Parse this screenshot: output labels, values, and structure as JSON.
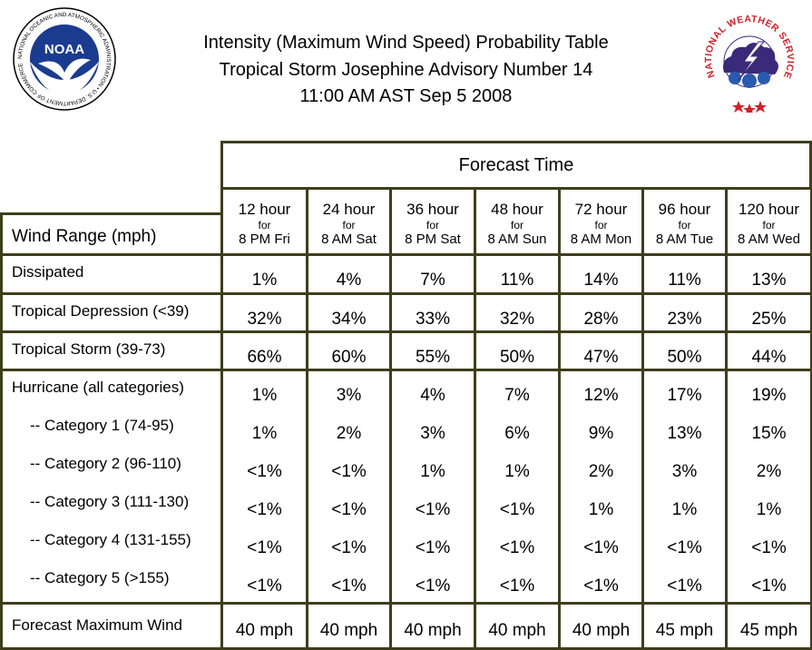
{
  "header": {
    "title_line1": "Intensity (Maximum Wind Speed) Probability Table",
    "title_line2": "Tropical Storm Josephine Advisory Number 14",
    "title_line3": "11:00 AM AST Sep 5 2008",
    "noaa_logo_text": "NOAA",
    "noaa_ring_text": "NATIONAL OCEANIC AND ATMOSPHERIC ADMINISTRATION • U.S. DEPARTMENT OF COMMERCE",
    "nws_ring_text": "NATIONAL WEATHER SERVICE"
  },
  "colors": {
    "border": "#3e3e1c",
    "noaa_blue": "#1a3b8f",
    "nws_red": "#d0202a",
    "nws_cloud": "#3a2a7a"
  },
  "table": {
    "forecast_time_label": "Forecast Time",
    "wind_range_label": "Wind Range (mph)",
    "columns": [
      {
        "hours": "12 hour",
        "for": "for",
        "when": "8 PM Fri"
      },
      {
        "hours": "24 hour",
        "for": "for",
        "when": "8 AM Sat"
      },
      {
        "hours": "36 hour",
        "for": "for",
        "when": "8 PM Sat"
      },
      {
        "hours": "48 hour",
        "for": "for",
        "when": "8 AM Sun"
      },
      {
        "hours": "72 hour",
        "for": "for",
        "when": "8 AM Mon"
      },
      {
        "hours": "96 hour",
        "for": "for",
        "when": "8 AM Tue"
      },
      {
        "hours": "120 hour",
        "for": "for",
        "when": "8 AM Wed"
      }
    ],
    "rows": [
      {
        "label": "Dissipated",
        "values": [
          "1%",
          "4%",
          "7%",
          "11%",
          "14%",
          "11%",
          "13%"
        ]
      },
      {
        "label": "Tropical Depression (<39)",
        "values": [
          "32%",
          "34%",
          "33%",
          "32%",
          "28%",
          "23%",
          "25%"
        ]
      },
      {
        "label": "Tropical Storm (39-73)",
        "values": [
          "66%",
          "60%",
          "55%",
          "50%",
          "47%",
          "50%",
          "44%"
        ]
      },
      {
        "label": "Hurricane (all categories)",
        "values": [
          "1%",
          "3%",
          "4%",
          "7%",
          "12%",
          "17%",
          "19%"
        ]
      },
      {
        "label": "-- Category 1 (74-95)",
        "values": [
          "1%",
          "2%",
          "3%",
          "6%",
          "9%",
          "13%",
          "15%"
        ]
      },
      {
        "label": "-- Category 2 (96-110)",
        "values": [
          "<1%",
          "<1%",
          "1%",
          "1%",
          "2%",
          "3%",
          "2%"
        ]
      },
      {
        "label": "-- Category 3 (111-130)",
        "values": [
          "<1%",
          "<1%",
          "<1%",
          "<1%",
          "1%",
          "1%",
          "1%"
        ]
      },
      {
        "label": "-- Category 4 (131-155)",
        "values": [
          "<1%",
          "<1%",
          "<1%",
          "<1%",
          "<1%",
          "<1%",
          "<1%"
        ]
      },
      {
        "label": "-- Category 5 (>155)",
        "values": [
          "<1%",
          "<1%",
          "<1%",
          "<1%",
          "<1%",
          "<1%",
          "<1%"
        ]
      }
    ],
    "max_wind": {
      "label": "Forecast Maximum Wind",
      "values": [
        "40 mph",
        "40 mph",
        "40 mph",
        "40 mph",
        "40 mph",
        "45 mph",
        "45 mph"
      ]
    }
  }
}
